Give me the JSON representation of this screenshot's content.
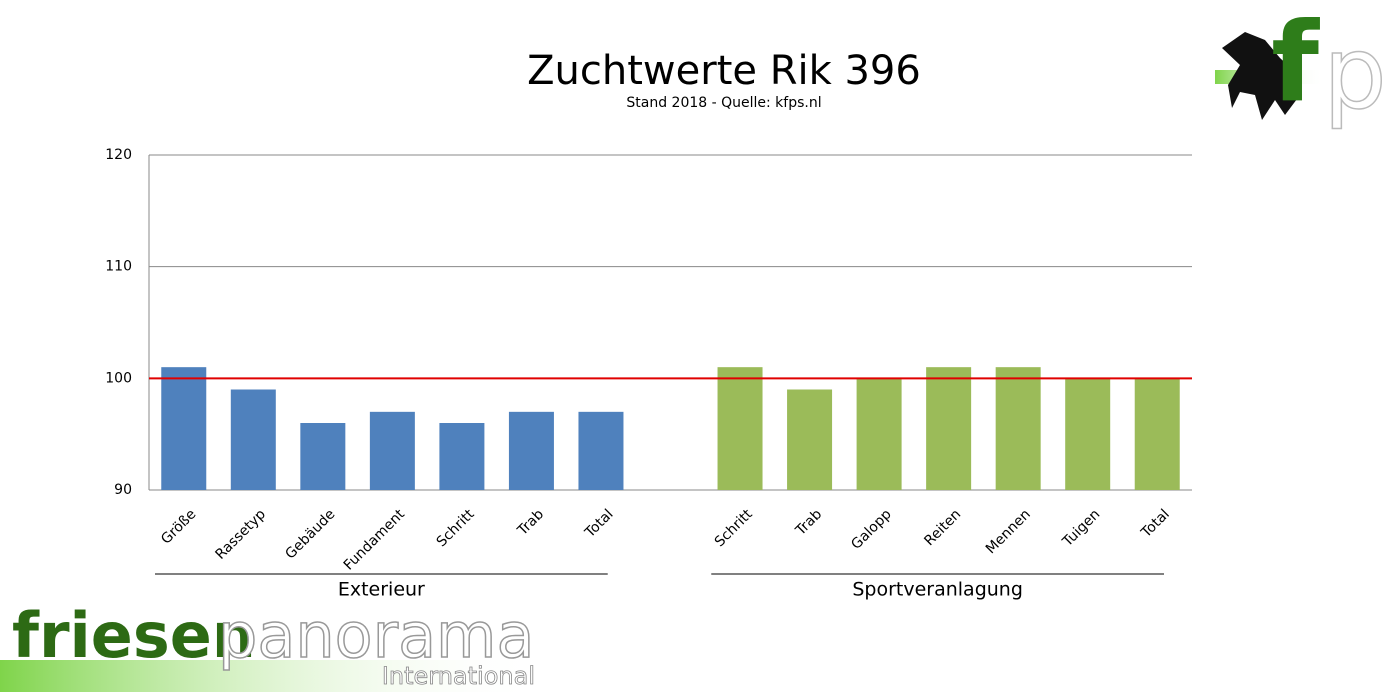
{
  "chart_data": {
    "type": "bar",
    "title": "Zuchtwerte Rik 396",
    "subtitle": "Stand 2018 - Quelle: kfps.nl",
    "categories": [
      "Größe",
      "Rassetyp",
      "Gebäude",
      "Fundament",
      "Schritt",
      "Trab",
      "Total",
      null,
      "Schritt",
      "Trab",
      "Galopp",
      "Reiten",
      "Mennen",
      "Tuigen",
      "Total"
    ],
    "values": [
      101,
      99,
      96,
      97,
      96,
      97,
      97,
      null,
      101,
      99,
      100,
      101,
      101,
      100,
      100
    ],
    "colors": [
      "#4f81bd",
      "#4f81bd",
      "#4f81bd",
      "#4f81bd",
      "#4f81bd",
      "#4f81bd",
      "#4f81bd",
      null,
      "#9bbb59",
      "#9bbb59",
      "#9bbb59",
      "#9bbb59",
      "#9bbb59",
      "#9bbb59",
      "#9bbb59"
    ],
    "groups": [
      "Exterieur",
      "Sportveranlagung"
    ],
    "reference_line": {
      "value": 100,
      "color": "#e00000"
    },
    "ylim": [
      90,
      120
    ],
    "yticks": [
      90,
      100,
      110,
      120
    ],
    "grid": true
  },
  "logo": {
    "brand1": "friesen",
    "brand2": "panorama",
    "brand3": "International",
    "mark1": "f",
    "mark2": "p"
  }
}
